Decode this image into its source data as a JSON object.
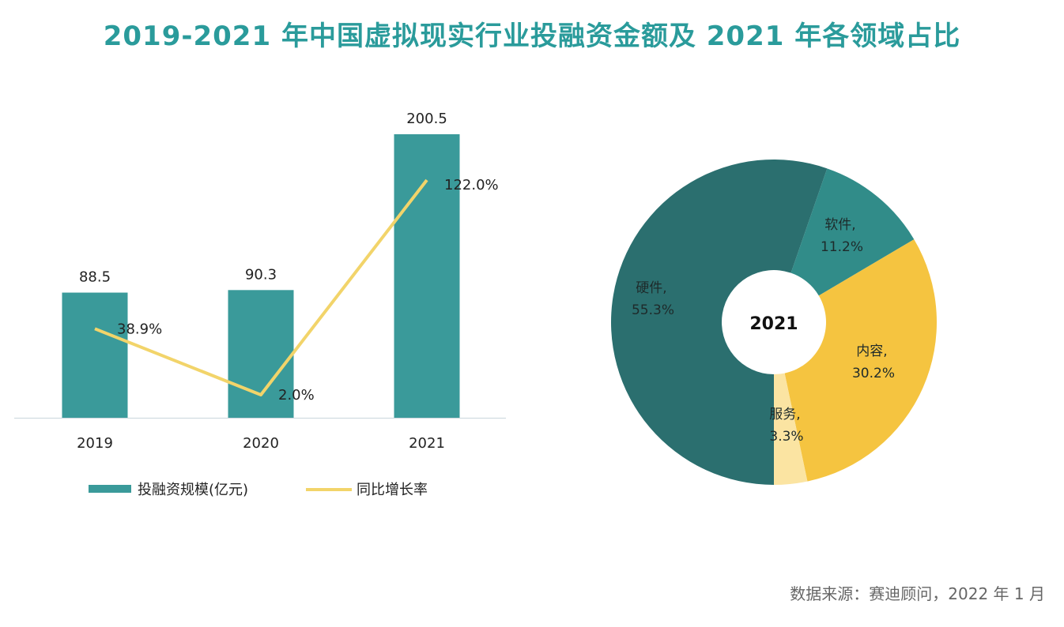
{
  "title": "2019-2021 年中国虚拟现实行业投融资金额及 2021 年各领域占比",
  "source": "数据来源：赛迪顾问，2022 年 1 月",
  "chart_data": [
    {
      "type": "bar",
      "categories": [
        "2019",
        "2020",
        "2021"
      ],
      "series": [
        {
          "name": "投融资规模(亿元)",
          "type": "bar",
          "values": [
            88.5,
            90.3,
            200.5
          ],
          "labels": [
            "88.5",
            "90.3",
            "200.5"
          ],
          "color": "#3a9a9a"
        },
        {
          "name": "同比增长率",
          "type": "line",
          "axis": "secondary",
          "values": [
            38.9,
            2.0,
            122.0
          ],
          "labels": [
            "38.9%",
            "2.0%",
            "122.0%"
          ],
          "color": "#f2d46a"
        }
      ],
      "legend": "bottom",
      "grid": false
    },
    {
      "type": "pie",
      "donut": true,
      "center_label": "2021",
      "slices": [
        {
          "name": "硬件",
          "value": 55.3,
          "label": "55.3%",
          "color": "#2b6f6f"
        },
        {
          "name": "软件",
          "value": 11.2,
          "label": "11.2%",
          "color": "#318c89"
        },
        {
          "name": "内容",
          "value": 30.2,
          "label": "30.2%",
          "color": "#f5c440"
        },
        {
          "name": "服务",
          "value": 3.3,
          "label": "3.3%",
          "color": "#fbe4a2"
        }
      ]
    }
  ]
}
